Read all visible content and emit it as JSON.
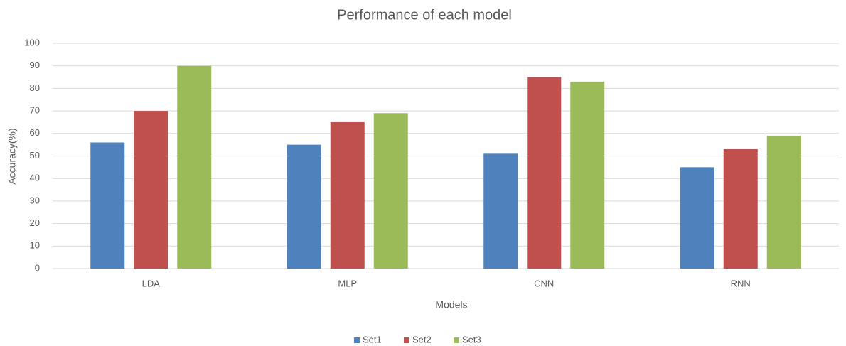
{
  "chart_data": {
    "type": "bar",
    "title": "Performance of each model",
    "x_label": "Models",
    "y_label": "Accuracy(%)",
    "categories": [
      "LDA",
      "MLP",
      "CNN",
      "RNN"
    ],
    "series": [
      {
        "name": "Set1",
        "color": "#4f81bd",
        "values": [
          56,
          55,
          51,
          45
        ]
      },
      {
        "name": "Set2",
        "color": "#c0504d",
        "values": [
          70,
          65,
          85,
          53
        ]
      },
      {
        "name": "Set3",
        "color": "#9bbb59",
        "values": [
          90,
          69,
          83,
          59
        ]
      }
    ],
    "ylim": [
      0,
      100
    ],
    "yticks": [
      0,
      10,
      20,
      30,
      40,
      50,
      60,
      70,
      80,
      90,
      100
    ],
    "grid": true,
    "legend": "bottom"
  }
}
